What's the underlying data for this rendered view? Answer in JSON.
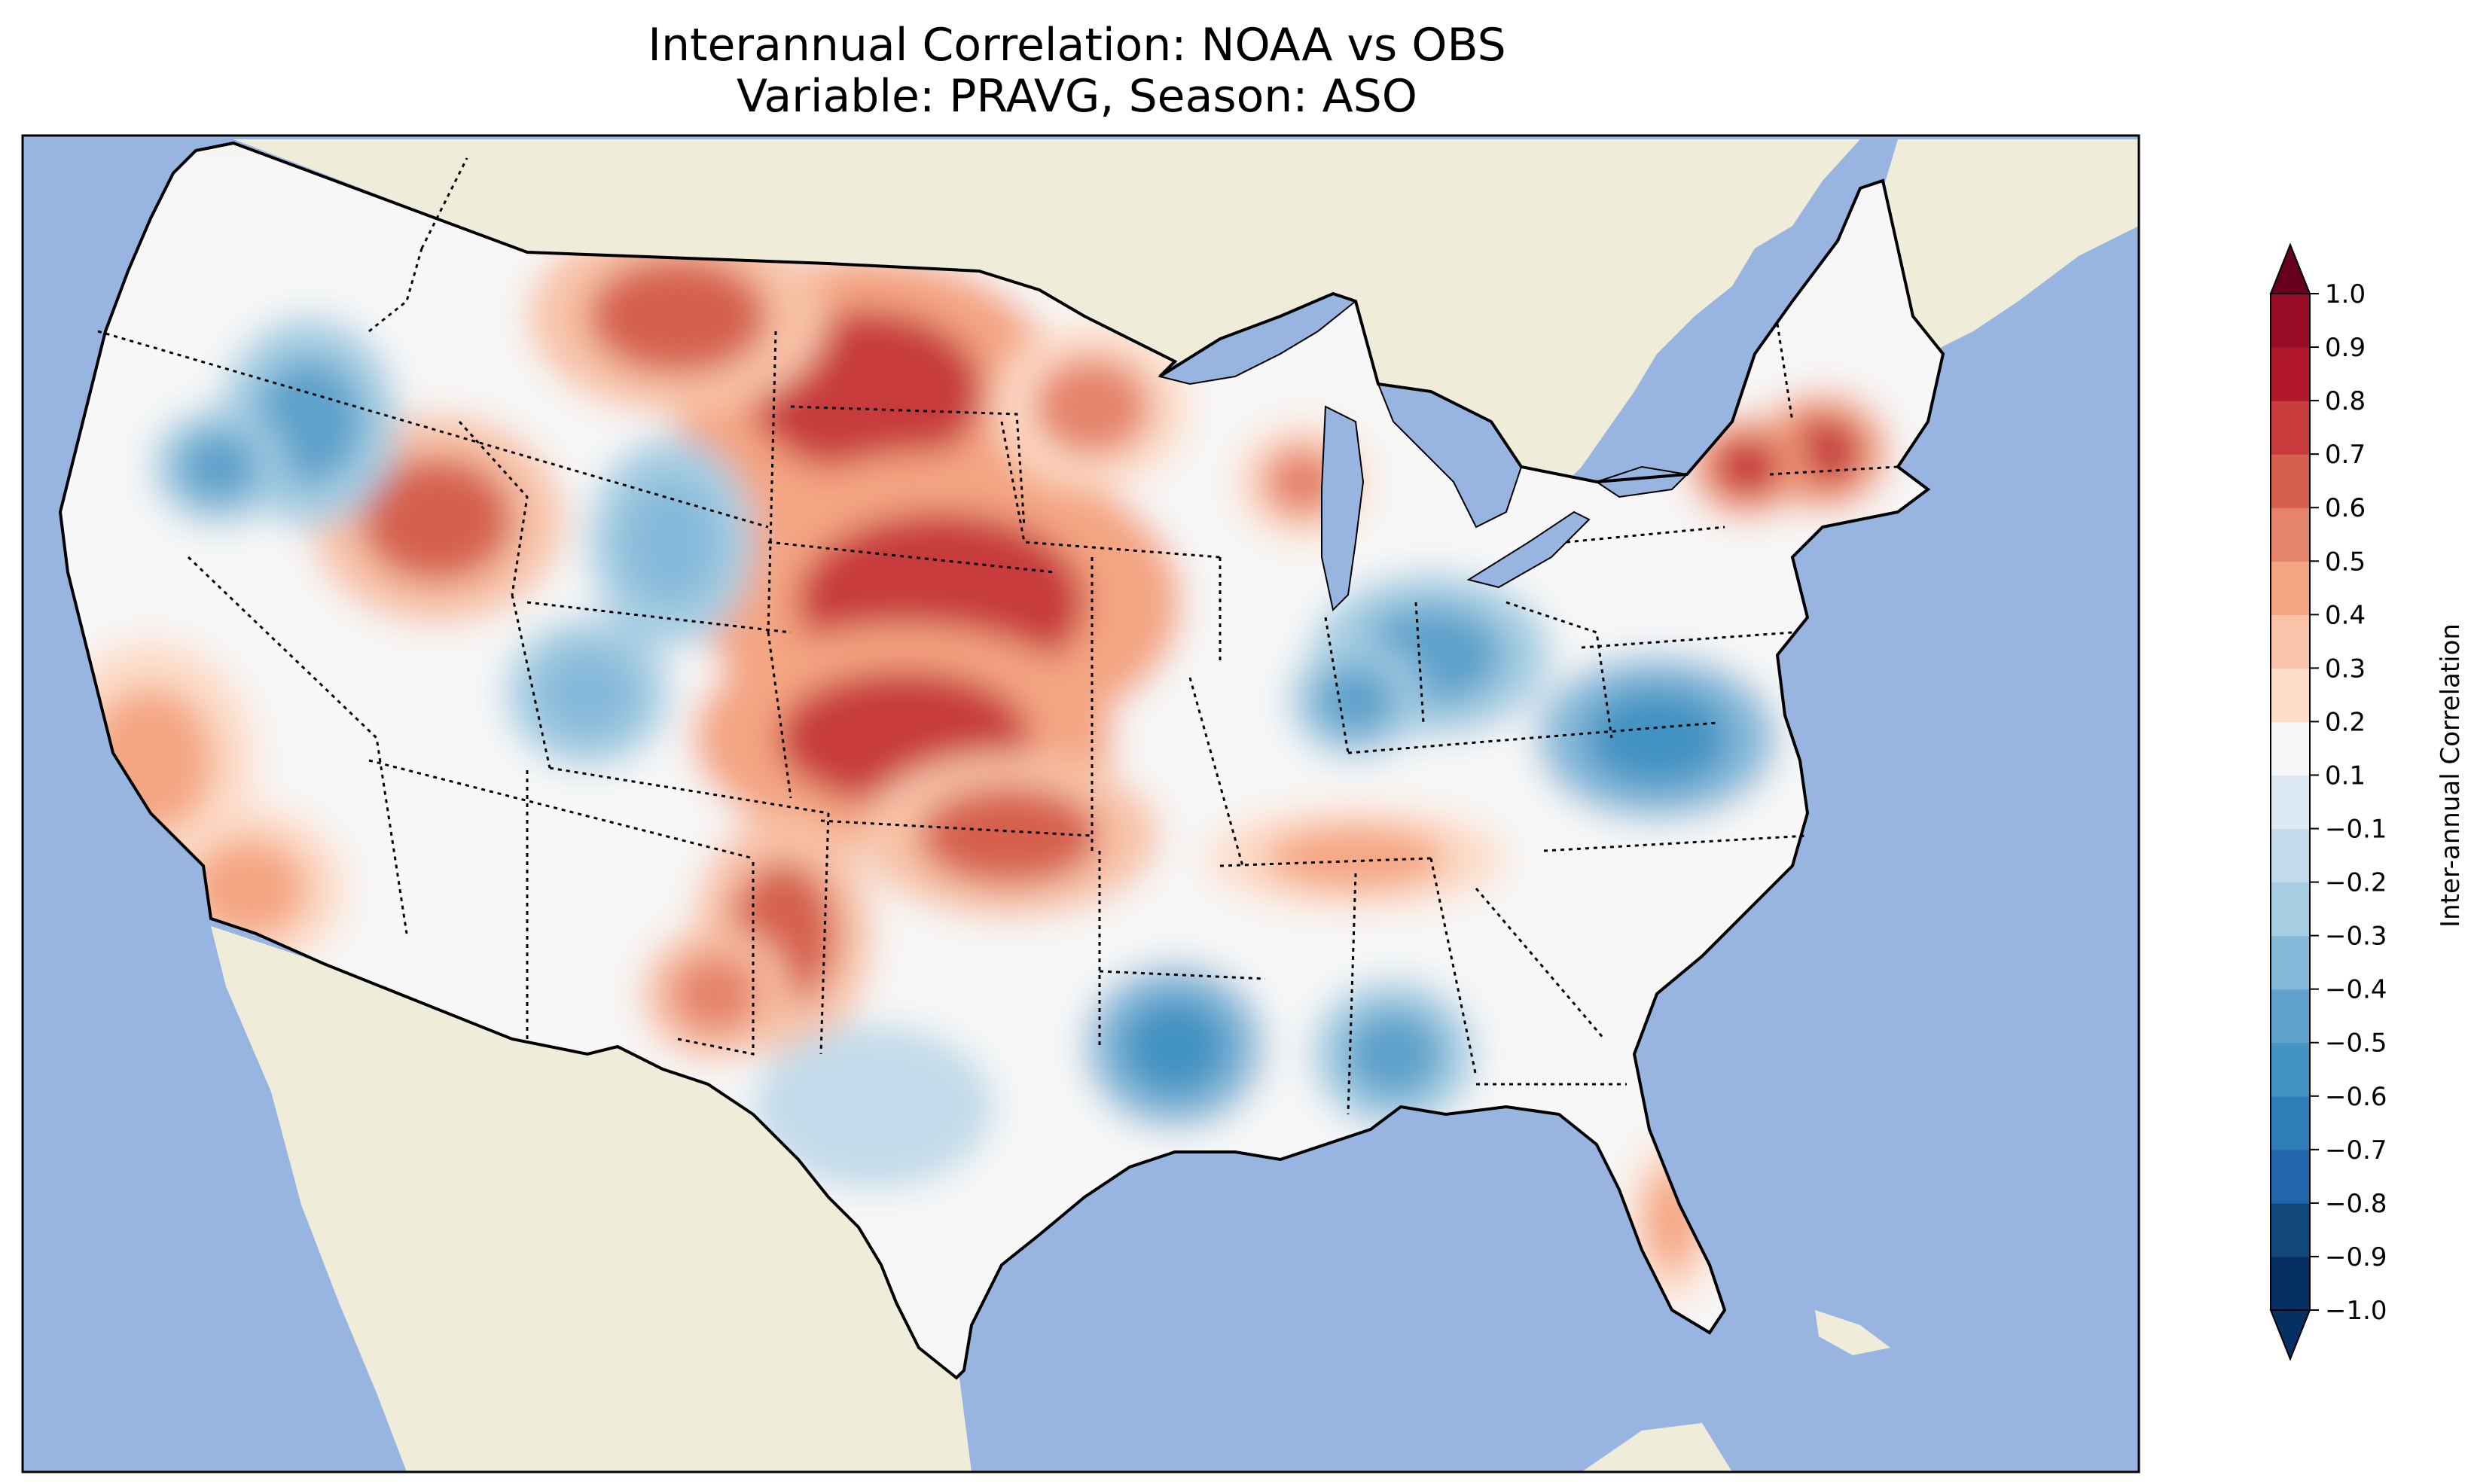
{
  "chart_data": {
    "type": "heatmap",
    "title": "Interannual Correlation: NOAA vs OBS",
    "subtitle": "Variable: PRAVG, Season: ASO",
    "map_region": "Contiguous United States",
    "colorbar": {
      "label": "Inter-annual Correlation",
      "colormap": "RdBu_r",
      "range": [
        -1.0,
        1.0
      ],
      "extend": "both",
      "levels": [
        -1.0,
        -0.9,
        -0.8,
        -0.7,
        -0.6,
        -0.5,
        -0.4,
        -0.3,
        -0.2,
        -0.1,
        0.1,
        0.2,
        0.3,
        0.4,
        0.5,
        0.6,
        0.7,
        0.8,
        0.9,
        1.0
      ],
      "tick_labels": [
        "1.0",
        "0.9",
        "0.8",
        "0.7",
        "0.6",
        "0.5",
        "0.4",
        "0.3",
        "0.2",
        "0.1",
        "−0.1",
        "−0.2",
        "−0.3",
        "−0.4",
        "−0.5",
        "−0.6",
        "−0.7",
        "−0.8",
        "−0.9",
        "−1.0"
      ],
      "colors": [
        "#67001f",
        "#980c26",
        "#b2182b",
        "#c73b3c",
        "#d6604d",
        "#e6846c",
        "#f4a582",
        "#f8c3a8",
        "#fddbc7",
        "#f7f7f7",
        "#dde9f2",
        "#c2dbea",
        "#a6cee3",
        "#86b9d9",
        "#5fa2cb",
        "#4393c3",
        "#2f7db8",
        "#2166ac",
        "#12477c",
        "#053061"
      ],
      "extend_colors": {
        "low": "#053061",
        "high": "#67001f"
      }
    },
    "regions_approx": [
      {
        "area": "Dakotas / Nebraska / Kansas (Great Plains)",
        "value": 0.75
      },
      {
        "area": "Idaho / Western Montana",
        "value": 0.6
      },
      {
        "area": "Oklahoma / North Texas",
        "value": 0.6
      },
      {
        "area": "Southern New England",
        "value": 0.75
      },
      {
        "area": "Central California",
        "value": 0.45
      },
      {
        "area": "Eastern New Mexico",
        "value": 0.55
      },
      {
        "area": "Minnesota / Wisconsin",
        "value": 0.5
      },
      {
        "area": "Tennessee Valley",
        "value": 0.45
      },
      {
        "area": "Virginia / North Carolina",
        "value": -0.6
      },
      {
        "area": "Ohio / Indiana",
        "value": -0.5
      },
      {
        "area": "Louisiana / Arkansas",
        "value": -0.55
      },
      {
        "area": "Mississippi / Alabama",
        "value": -0.5
      },
      {
        "area": "Oregon / Eastern Washington",
        "value": -0.45
      },
      {
        "area": "Wyoming / Colorado",
        "value": -0.4
      },
      {
        "area": "Florida",
        "value": 0.4
      },
      {
        "area": "South Texas",
        "value": -0.2
      }
    ]
  },
  "colors": {
    "ocean": "#98b5e1",
    "land": "#efedda",
    "no_data": "#f7f7f7"
  }
}
